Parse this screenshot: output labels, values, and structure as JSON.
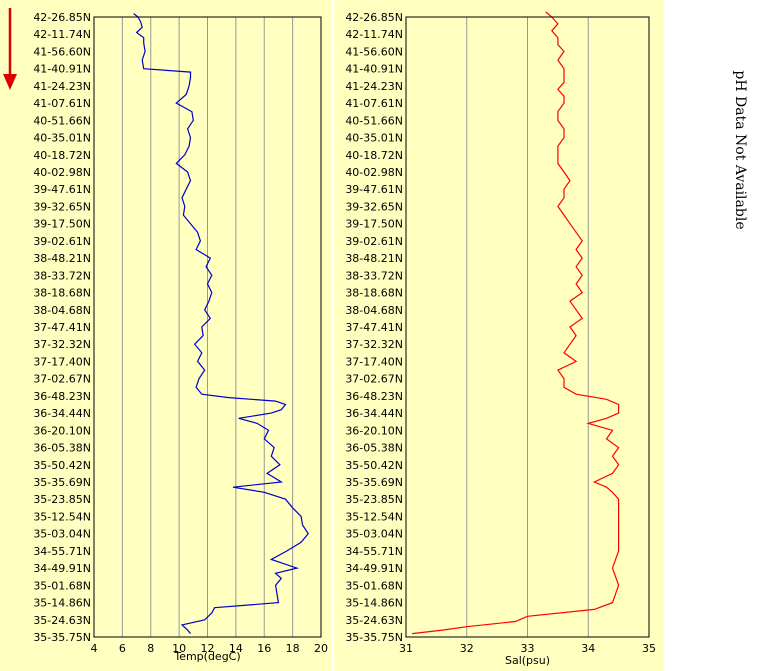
{
  "note_text": "pH Data Not Available",
  "colors": {
    "panel_bg": "#ffffc0",
    "grid": "#999999",
    "temp_line": "#0000cc",
    "sal_line": "#ff0000",
    "arrow": "#dd0000"
  },
  "chart_data": [
    {
      "type": "line",
      "xlabel": "Temp(degC)",
      "xlim": [
        4,
        20
      ],
      "xticks": [
        4,
        6,
        8,
        10,
        12,
        14,
        16,
        18,
        20
      ],
      "ylabels": [
        "42-26.85N",
        "42-11.74N",
        "41-56.60N",
        "41-40.91N",
        "41-24.23N",
        "41-07.61N",
        "40-51.66N",
        "40-35.01N",
        "40-18.72N",
        "40-02.98N",
        "39-47.61N",
        "39-32.65N",
        "39-17.50N",
        "39-02.61N",
        "38-48.21N",
        "38-33.72N",
        "38-18.68N",
        "38-04.68N",
        "37-47.41N",
        "37-32.32N",
        "37-17.40N",
        "37-02.67N",
        "36-48.23N",
        "36-34.44N",
        "36-20.10N",
        "36-05.38N",
        "35-50.42N",
        "35-35.69N",
        "35-23.85N",
        "35-12.54N",
        "35-03.04N",
        "34-55.71N",
        "34-49.91N",
        "35-01.68N",
        "35-14.86N",
        "35-24.63N",
        "35-35.75N"
      ],
      "grid": "vertical",
      "series": [
        {
          "y": [
            -0.2,
            0.0,
            0.3,
            0.6,
            0.9,
            1.2,
            1.5,
            2.0,
            2.5,
            3.0,
            3.2,
            3.5,
            4.0,
            4.5,
            5.0,
            5.5,
            6.0,
            6.5,
            7.0,
            7.5,
            8.0,
            8.5,
            9.0,
            9.5,
            10.0,
            10.5,
            11.0,
            11.5,
            12.0,
            12.5,
            13.0,
            13.5,
            14.0,
            14.5,
            15.0,
            15.5,
            16.0,
            16.5,
            17.0,
            17.5,
            18.0,
            18.5,
            19.0,
            19.5,
            20.0,
            20.5,
            21.0,
            21.5,
            21.9,
            22.1,
            22.3,
            22.5,
            22.8,
            23.0,
            23.3,
            23.6,
            24.0,
            24.5,
            25.0,
            25.5,
            26.0,
            26.5,
            27.0,
            27.3,
            27.6,
            28.0,
            28.5,
            29.0,
            29.5,
            30.0,
            30.5,
            31.0,
            31.5,
            32.0,
            32.3,
            32.6,
            33.0,
            33.5,
            34.0,
            34.3,
            34.6,
            35.0,
            35.3,
            35.6,
            35.8
          ],
          "x": [
            6.8,
            7.1,
            7.3,
            7.4,
            7.0,
            7.5,
            7.5,
            7.6,
            7.4,
            7.5,
            10.8,
            10.8,
            10.7,
            10.5,
            9.8,
            10.9,
            11.0,
            10.6,
            10.8,
            10.7,
            10.4,
            9.8,
            10.6,
            10.8,
            10.5,
            10.2,
            10.4,
            10.3,
            10.8,
            11.3,
            11.5,
            11.2,
            12.2,
            11.9,
            12.3,
            12.0,
            12.3,
            12.1,
            11.8,
            12.2,
            11.6,
            11.7,
            11.1,
            11.6,
            11.3,
            11.8,
            11.4,
            11.2,
            11.6,
            13.5,
            16.8,
            17.5,
            17.2,
            16.5,
            14.2,
            15.5,
            16.3,
            16.0,
            16.7,
            16.5,
            17.1,
            16.2,
            17.2,
            13.8,
            16.0,
            17.5,
            18.0,
            18.6,
            18.7,
            19.1,
            18.6,
            17.6,
            16.5,
            18.3,
            16.8,
            17.2,
            16.8,
            16.9,
            17.0,
            12.5,
            12.3,
            11.8,
            10.2,
            10.6,
            10.8
          ]
        }
      ]
    },
    {
      "type": "line",
      "xlabel": "Sal(psu)",
      "xlim": [
        31,
        35
      ],
      "xticks": [
        31,
        32,
        33,
        34,
        35
      ],
      "ylabels": [
        "42-26.85N",
        "42-11.74N",
        "41-56.60N",
        "41-40.91N",
        "41-24.23N",
        "41-07.61N",
        "40-51.66N",
        "40-35.01N",
        "40-18.72N",
        "40-02.98N",
        "39-47.61N",
        "39-32.65N",
        "39-17.50N",
        "39-02.61N",
        "38-48.21N",
        "38-33.72N",
        "38-18.68N",
        "38-04.68N",
        "37-47.41N",
        "37-32.32N",
        "37-17.40N",
        "37-02.67N",
        "36-48.23N",
        "36-34.44N",
        "36-20.10N",
        "36-05.38N",
        "35-50.42N",
        "35-35.69N",
        "35-23.85N",
        "35-12.54N",
        "35-03.04N",
        "34-55.71N",
        "34-49.91N",
        "35-01.68N",
        "35-14.86N",
        "35-24.63N",
        "35-35.75N"
      ],
      "grid": "vertical",
      "series": [
        {
          "y": [
            -0.3,
            0.0,
            0.4,
            0.8,
            1.2,
            1.6,
            2.0,
            2.5,
            3.0,
            3.4,
            3.8,
            4.2,
            4.6,
            5.0,
            5.5,
            6.0,
            6.5,
            7.0,
            7.5,
            8.0,
            8.5,
            9.0,
            9.5,
            10.0,
            10.5,
            11.0,
            11.5,
            12.0,
            12.5,
            13.0,
            13.5,
            14.0,
            14.5,
            15.0,
            15.5,
            16.0,
            16.5,
            17.0,
            17.5,
            18.0,
            18.5,
            19.0,
            19.5,
            20.0,
            20.5,
            21.0,
            21.5,
            21.9,
            22.2,
            22.5,
            23.0,
            23.3,
            23.6,
            24.0,
            24.5,
            25.0,
            25.5,
            26.0,
            26.5,
            27.0,
            27.3,
            27.6,
            28.0,
            29.0,
            30.0,
            31.0,
            32.0,
            33.0,
            34.0,
            34.4,
            34.8,
            35.1,
            35.4,
            35.6,
            35.8
          ],
          "x": [
            33.3,
            33.4,
            33.5,
            33.4,
            33.5,
            33.5,
            33.6,
            33.5,
            33.6,
            33.6,
            33.6,
            33.5,
            33.6,
            33.6,
            33.5,
            33.5,
            33.6,
            33.6,
            33.5,
            33.5,
            33.5,
            33.6,
            33.7,
            33.6,
            33.6,
            33.5,
            33.6,
            33.7,
            33.8,
            33.9,
            33.8,
            33.9,
            33.8,
            33.9,
            33.8,
            33.9,
            33.7,
            33.8,
            33.9,
            33.7,
            33.8,
            33.7,
            33.6,
            33.8,
            33.5,
            33.6,
            33.6,
            33.8,
            34.3,
            34.5,
            34.5,
            34.3,
            34.0,
            34.4,
            34.3,
            34.5,
            34.4,
            34.5,
            34.4,
            34.1,
            34.3,
            34.4,
            34.5,
            34.5,
            34.5,
            34.5,
            34.4,
            34.5,
            34.4,
            34.1,
            33.0,
            32.8,
            32.0,
            31.6,
            31.1
          ]
        }
      ]
    }
  ]
}
